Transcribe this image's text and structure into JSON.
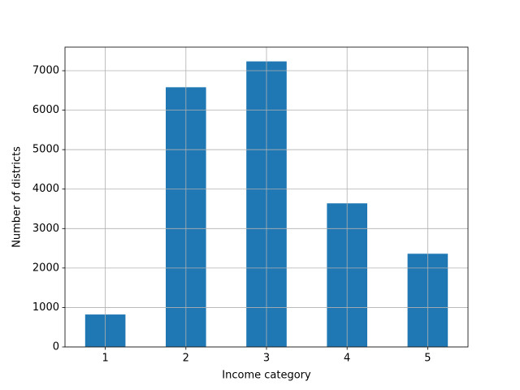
{
  "chart_data": {
    "type": "bar",
    "x_label": "Income category",
    "y_label": "Number of districts",
    "categories": [
      "1",
      "2",
      "3",
      "4",
      "5"
    ],
    "values": [
      822,
      6581,
      7236,
      3639,
      2362
    ],
    "color": "#1f77b4",
    "ylim": [
      0,
      7597.8
    ],
    "yticks": [
      0,
      1000,
      2000,
      3000,
      4000,
      5000,
      6000,
      7000
    ],
    "grid": true
  }
}
